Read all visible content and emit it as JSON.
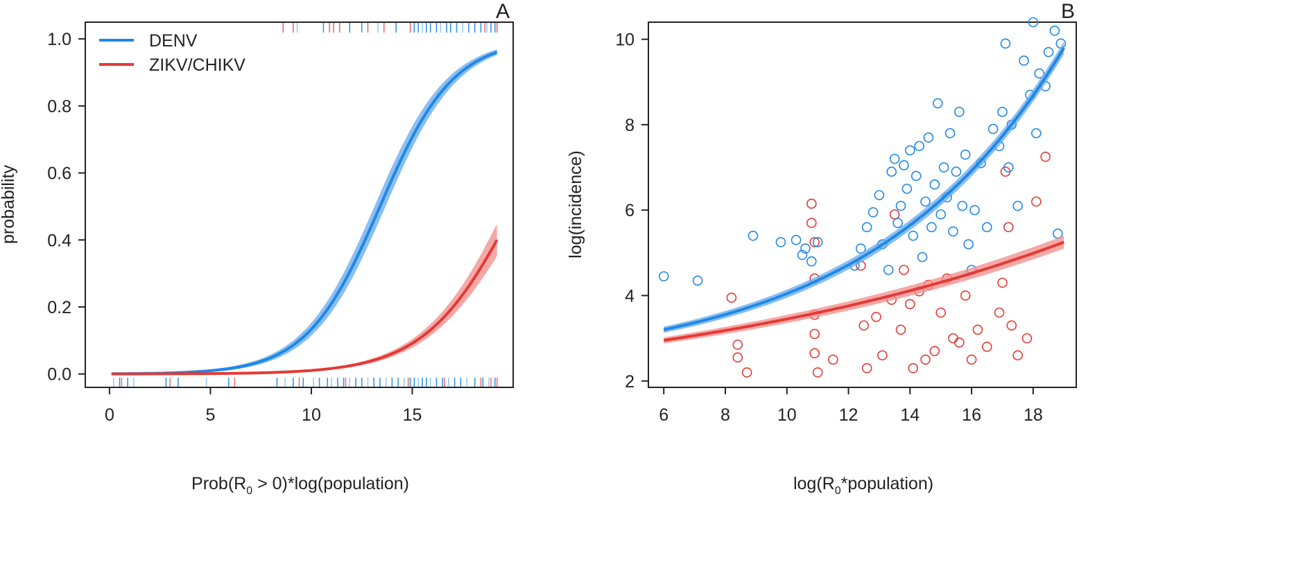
{
  "colors": {
    "denv": "#1E88E5",
    "denv_band": "#64A8EE",
    "zikv": "#E53935",
    "zikv_band": "#F08C8A",
    "axis": "#222222"
  },
  "chart_data": [
    {
      "type": "line",
      "panel": "A",
      "xlabel_parts": {
        "pre": "Prob(R",
        "sub": "0",
        "post": " > 0)*log(population)"
      },
      "ylabel": "probability",
      "xlim": [
        -1.2,
        20.0
      ],
      "ylim": [
        -0.04,
        1.05
      ],
      "x_ticks": [
        0,
        5,
        10,
        15
      ],
      "x_tick_labels": [
        "0",
        "5",
        "10",
        "15"
      ],
      "y_ticks": [
        0.0,
        0.2,
        0.4,
        0.6,
        0.8,
        1.0
      ],
      "y_tick_labels": [
        "0.0",
        "0.2",
        "0.4",
        "0.6",
        "0.8",
        "1.0"
      ],
      "legend": {
        "position": "top-left",
        "entries": [
          "DENV",
          "ZIKV/CHIKV"
        ]
      },
      "series": [
        {
          "name": "DENV",
          "x_range": [
            0.1,
            19.2
          ],
          "logistic": {
            "midpoint": 13.4,
            "slope": 0.55,
            "lower_slope": 0.6,
            "upper_slope": 0.5
          },
          "band_halfwidth": 0.035,
          "points": [
            [
              0,
              0.001
            ],
            [
              5,
              0.003
            ],
            [
              8,
              0.05
            ],
            [
              10,
              0.15
            ],
            [
              12,
              0.36
            ],
            [
              13.4,
              0.5
            ],
            [
              15,
              0.73
            ],
            [
              17,
              0.89
            ],
            [
              19.2,
              0.955
            ]
          ]
        },
        {
          "name": "ZIKV/CHIKV",
          "x_range": [
            0.1,
            19.2
          ],
          "logistic": {
            "midpoint": 20.1,
            "slope": 0.45
          },
          "band_halfwidth": 0.045,
          "points": [
            [
              0,
              0.0
            ],
            [
              8,
              0.004
            ],
            [
              12,
              0.025
            ],
            [
              15,
              0.09
            ],
            [
              17,
              0.2
            ],
            [
              19.2,
              0.38
            ]
          ]
        }
      ],
      "rug_bottom": {
        "DENV": [
          0.2,
          0.5,
          0.9,
          1.2,
          2.8,
          3.4,
          4.8,
          5.9,
          8.3,
          8.7,
          9.1,
          9.6,
          10.1,
          10.4,
          10.8,
          11.0,
          11.3,
          11.6,
          11.9,
          12.2,
          12.5,
          12.8,
          13.1,
          13.4,
          13.7,
          14.0,
          14.3,
          14.6,
          14.9,
          15.1,
          15.3,
          15.5,
          15.7,
          15.9,
          16.2,
          16.5,
          16.8,
          17.1,
          17.4,
          17.7,
          18.1,
          18.5,
          18.8,
          19.1
        ],
        "ZIKV/CHIKV": [
          0.6,
          3.0,
          6.2,
          9.4,
          11.7,
          14.8,
          16.6,
          18.4,
          18.9,
          19.2
        ]
      },
      "rug_top": {
        "DENV": [
          9.3,
          10.6,
          11.9,
          12.5,
          13.3,
          14.2,
          15.1,
          15.3,
          15.5,
          15.7,
          15.9,
          16.2,
          16.4,
          16.7,
          16.9,
          17.2,
          17.5,
          17.8,
          18.1,
          18.4,
          18.7,
          18.9,
          19.1
        ],
        "ZIKV/CHIKV": [
          8.6,
          9.1,
          10.9,
          11.1,
          11.4,
          12.8,
          13.6,
          14.9,
          18.6,
          19.2
        ]
      }
    },
    {
      "type": "scatter",
      "panel": "B",
      "xlabel_parts": {
        "pre": "log(R",
        "sub": "0",
        "post": "*population)"
      },
      "ylabel": "log(incidence)",
      "xlim": [
        5.5,
        19.4
      ],
      "ylim": [
        1.85,
        10.4
      ],
      "x_ticks": [
        6,
        8,
        10,
        12,
        14,
        16,
        18
      ],
      "x_tick_labels": [
        "6",
        "8",
        "10",
        "12",
        "14",
        "16",
        "18"
      ],
      "y_ticks": [
        2,
        4,
        6,
        8,
        10
      ],
      "y_tick_labels": [
        "2",
        "4",
        "6",
        "8",
        "10"
      ],
      "series": [
        {
          "name": "DENV",
          "fit": {
            "x_range": [
              6.0,
              19.0
            ],
            "y_at_6": 3.2,
            "y_at_19": 9.8,
            "exp_rate": 0.16
          },
          "band_halfwidth": 0.12,
          "points_scatter": [
            [
              6.0,
              4.45
            ],
            [
              7.1,
              4.35
            ],
            [
              8.9,
              5.4
            ],
            [
              9.8,
              5.25
            ],
            [
              10.3,
              5.3
            ],
            [
              10.5,
              4.95
            ],
            [
              10.6,
              5.1
            ],
            [
              10.8,
              4.8
            ],
            [
              11.0,
              5.25
            ],
            [
              12.2,
              4.7
            ],
            [
              12.4,
              5.1
            ],
            [
              12.6,
              5.6
            ],
            [
              12.8,
              5.95
            ],
            [
              13.0,
              6.35
            ],
            [
              13.1,
              5.2
            ],
            [
              13.3,
              4.6
            ],
            [
              13.4,
              6.9
            ],
            [
              13.5,
              7.2
            ],
            [
              13.6,
              5.7
            ],
            [
              13.7,
              6.1
            ],
            [
              13.8,
              7.05
            ],
            [
              13.9,
              6.5
            ],
            [
              14.0,
              7.4
            ],
            [
              14.1,
              5.4
            ],
            [
              14.2,
              6.8
            ],
            [
              14.3,
              7.5
            ],
            [
              14.4,
              4.9
            ],
            [
              14.5,
              6.2
            ],
            [
              14.6,
              7.7
            ],
            [
              14.7,
              5.6
            ],
            [
              14.8,
              6.6
            ],
            [
              14.9,
              8.5
            ],
            [
              15.0,
              5.9
            ],
            [
              15.1,
              7.0
            ],
            [
              15.2,
              6.3
            ],
            [
              15.3,
              7.8
            ],
            [
              15.4,
              5.5
            ],
            [
              15.5,
              6.9
            ],
            [
              15.6,
              8.3
            ],
            [
              15.7,
              6.1
            ],
            [
              15.8,
              7.3
            ],
            [
              15.9,
              5.2
            ],
            [
              16.0,
              4.6
            ],
            [
              16.1,
              6.0
            ],
            [
              16.3,
              7.1
            ],
            [
              16.5,
              5.6
            ],
            [
              16.7,
              7.9
            ],
            [
              16.9,
              7.5
            ],
            [
              17.0,
              8.3
            ],
            [
              17.1,
              9.9
            ],
            [
              17.2,
              7.0
            ],
            [
              17.3,
              8.0
            ],
            [
              17.5,
              6.1
            ],
            [
              17.7,
              9.5
            ],
            [
              17.9,
              8.7
            ],
            [
              18.0,
              10.4
            ],
            [
              18.1,
              7.8
            ],
            [
              18.2,
              9.2
            ],
            [
              18.4,
              8.9
            ],
            [
              18.5,
              9.7
            ],
            [
              18.7,
              10.2
            ],
            [
              18.8,
              5.45
            ],
            [
              18.9,
              9.9
            ]
          ]
        },
        {
          "name": "ZIKV/CHIKV",
          "fit": {
            "x_range": [
              6.0,
              19.0
            ],
            "y_at_6": 2.95,
            "y_at_19": 5.25,
            "exp_rate": 0.07
          },
          "band_halfwidth": 0.12,
          "points_scatter": [
            [
              8.2,
              3.95
            ],
            [
              8.4,
              2.85
            ],
            [
              8.4,
              2.55
            ],
            [
              8.7,
              2.2
            ],
            [
              10.8,
              6.15
            ],
            [
              10.8,
              5.7
            ],
            [
              10.9,
              5.25
            ],
            [
              10.9,
              4.4
            ],
            [
              10.9,
              3.55
            ],
            [
              10.9,
              3.1
            ],
            [
              10.9,
              2.65
            ],
            [
              11.0,
              2.2
            ],
            [
              11.5,
              2.5
            ],
            [
              12.4,
              4.7
            ],
            [
              12.5,
              3.3
            ],
            [
              12.6,
              2.3
            ],
            [
              12.9,
              3.5
            ],
            [
              13.1,
              2.6
            ],
            [
              13.4,
              3.9
            ],
            [
              13.5,
              5.9
            ],
            [
              13.7,
              3.2
            ],
            [
              13.8,
              4.6
            ],
            [
              14.0,
              3.8
            ],
            [
              14.1,
              2.3
            ],
            [
              14.3,
              4.1
            ],
            [
              14.5,
              2.5
            ],
            [
              14.6,
              4.25
            ],
            [
              14.8,
              2.7
            ],
            [
              15.0,
              3.6
            ],
            [
              15.2,
              4.4
            ],
            [
              15.4,
              3.0
            ],
            [
              15.6,
              2.9
            ],
            [
              15.8,
              4.0
            ],
            [
              16.0,
              2.5
            ],
            [
              16.2,
              3.2
            ],
            [
              16.5,
              2.8
            ],
            [
              16.9,
              3.6
            ],
            [
              17.0,
              4.3
            ],
            [
              17.1,
              6.9
            ],
            [
              17.2,
              5.6
            ],
            [
              17.3,
              3.3
            ],
            [
              17.5,
              2.6
            ],
            [
              17.8,
              3.0
            ],
            [
              18.1,
              6.2
            ],
            [
              18.4,
              7.25
            ]
          ]
        }
      ]
    }
  ],
  "panel_letters": [
    "A",
    "B"
  ]
}
